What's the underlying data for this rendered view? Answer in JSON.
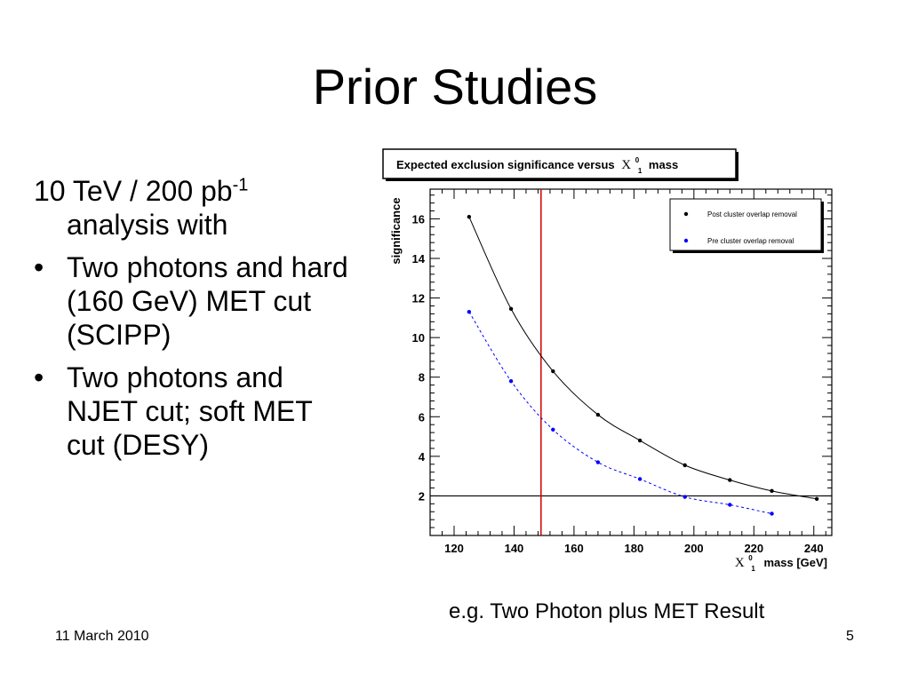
{
  "slide": {
    "title": "Prior Studies",
    "lead": {
      "text": "10 TeV / 200 pb",
      "sup": "-1",
      "cont": "analysis with"
    },
    "bullets": [
      {
        "marker": "•",
        "text": "Two photons and hard (160 GeV) MET cut (SCIPP)"
      },
      {
        "marker": "•",
        "text": "Two photons and NJET cut; soft MET cut (DESY)"
      }
    ],
    "caption": "e.g. Two Photon plus MET Result",
    "footer": {
      "date": "11 March 2010",
      "page": "5"
    }
  },
  "chart_data": {
    "type": "scatter",
    "title": "Expected exclusion significance versus",
    "title_symbol": "X",
    "title_sup": "0",
    "title_sub": "1",
    "title_tail": "mass",
    "xlabel_symbol": "X",
    "xlabel_sup": "0",
    "xlabel_sub": "1",
    "xlabel": "mass [GeV]",
    "ylabel": "significance",
    "xlim": [
      112,
      246
    ],
    "ylim": [
      0,
      17.5
    ],
    "xticks": [
      "120",
      "140",
      "160",
      "180",
      "200",
      "220",
      "240"
    ],
    "yticks": [
      "2",
      "4",
      "6",
      "8",
      "10",
      "12",
      "14",
      "16"
    ],
    "hline": 2,
    "vline": 149,
    "legend_position": "top-right",
    "series": [
      {
        "name": "Post cluster overlap removal",
        "color": "#000000",
        "line": "solid",
        "x": [
          125,
          139,
          153,
          168,
          182,
          197,
          212,
          226,
          241
        ],
        "y": [
          16.1,
          11.45,
          8.3,
          6.1,
          4.8,
          3.55,
          2.8,
          2.25,
          1.85
        ]
      },
      {
        "name": "Pre cluster overlap removal",
        "color": "#0000ff",
        "line": "dashed",
        "x": [
          125,
          139,
          153,
          168,
          182,
          197,
          212,
          226
        ],
        "y": [
          11.3,
          7.8,
          5.35,
          3.7,
          2.85,
          1.95,
          1.55,
          1.1
        ]
      }
    ],
    "colors": {
      "frame": "#000000",
      "vline": "#cc0000",
      "hline": "#000000"
    }
  }
}
